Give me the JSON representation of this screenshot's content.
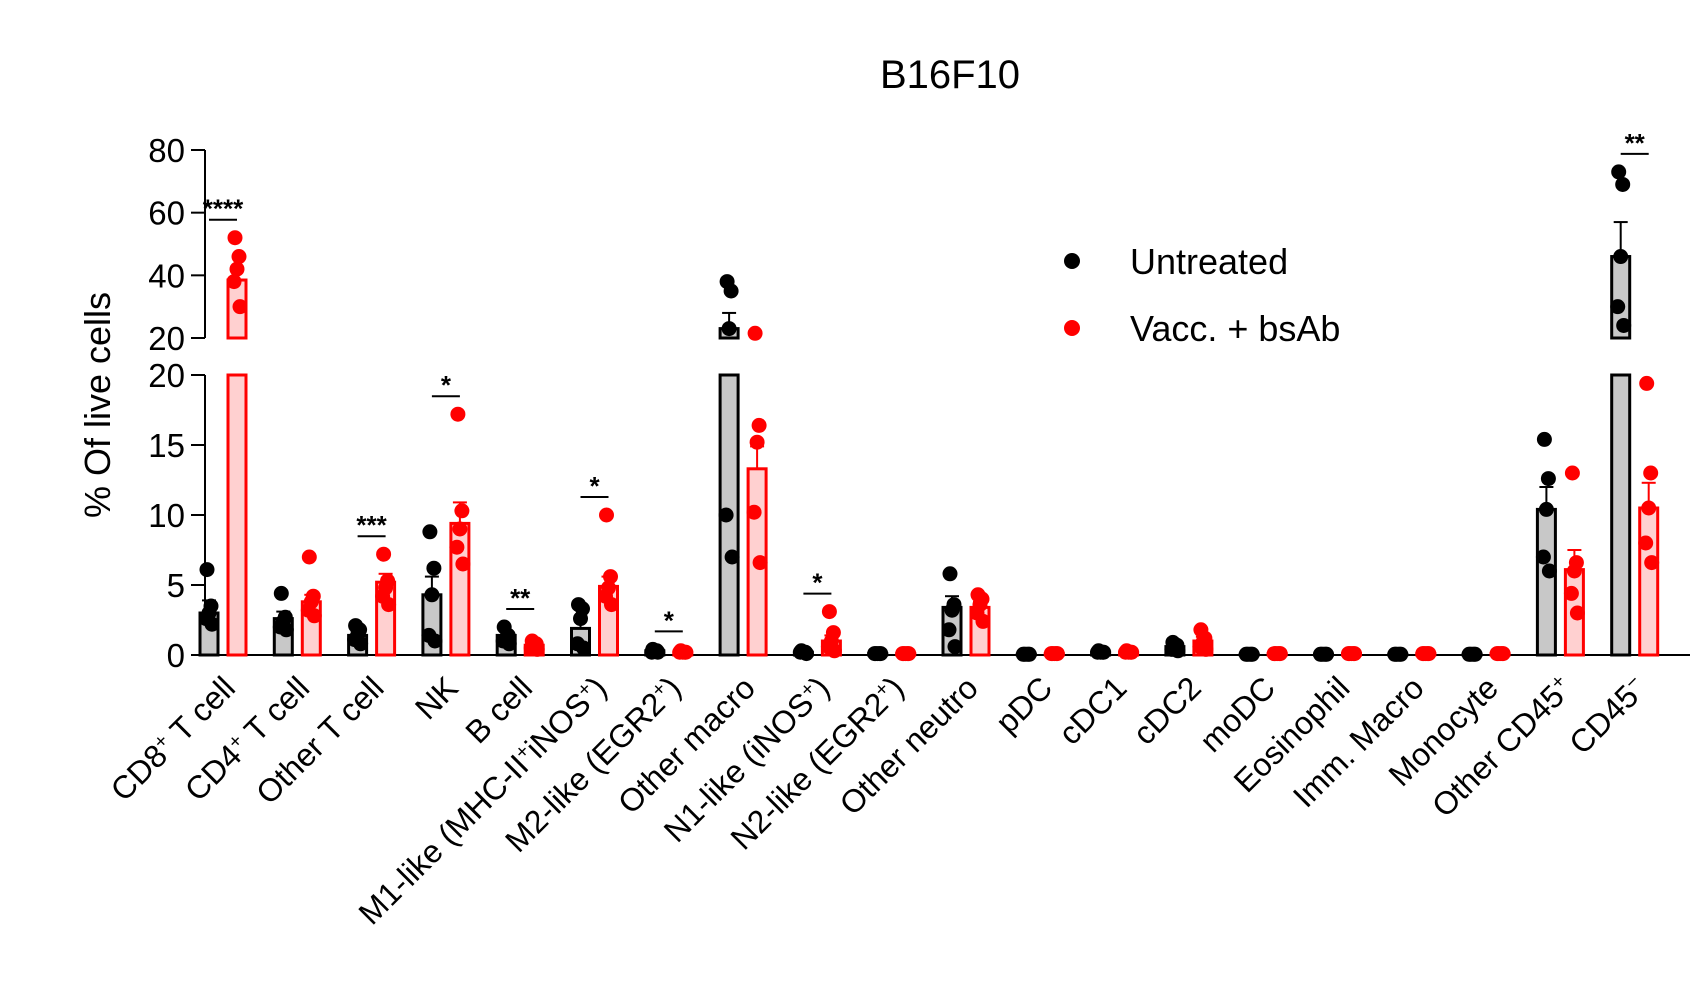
{
  "chart_data": {
    "type": "bar",
    "title": "B16F10",
    "ylabel": "% Of live cells",
    "xlabel": "",
    "y_axis_break": true,
    "ylim_lower": [
      0,
      20
    ],
    "ylim_upper": [
      20,
      80
    ],
    "yticks_lower": [
      "0",
      "5",
      "10",
      "15",
      "20"
    ],
    "yticks_upper": [
      "20",
      "40",
      "60",
      "80"
    ],
    "legend_position": "top-right",
    "categories": [
      {
        "name": "CD8",
        "sup": "+",
        "rest": " T cell"
      },
      {
        "name": "CD4",
        "sup": "+",
        "rest": " T cell"
      },
      {
        "name": "Other T cell",
        "sup": "",
        "rest": ""
      },
      {
        "name": "NK",
        "sup": "",
        "rest": ""
      },
      {
        "name": "B cell",
        "sup": "",
        "rest": ""
      },
      {
        "name": "M1-like (MHC-II",
        "sup": "+",
        "rest": "iNOS",
        "sup2": "+",
        "rest2": ")"
      },
      {
        "name": "M2-like (EGR2",
        "sup": "+",
        "rest": ")"
      },
      {
        "name": "Other macro",
        "sup": "",
        "rest": ""
      },
      {
        "name": "N1-like (iNOS",
        "sup": "+",
        "rest": ")"
      },
      {
        "name": "N2-like (EGR2",
        "sup": "+",
        "rest": ")"
      },
      {
        "name": "Other neutro",
        "sup": "",
        "rest": ""
      },
      {
        "name": "pDC",
        "sup": "",
        "rest": ""
      },
      {
        "name": "cDC1",
        "sup": "",
        "rest": ""
      },
      {
        "name": "cDC2",
        "sup": "",
        "rest": ""
      },
      {
        "name": "moDC",
        "sup": "",
        "rest": ""
      },
      {
        "name": "Eosinophil",
        "sup": "",
        "rest": ""
      },
      {
        "name": "Imm. Macro",
        "sup": "",
        "rest": ""
      },
      {
        "name": "Monocyte",
        "sup": "",
        "rest": ""
      },
      {
        "name": "Other CD45",
        "sup": "+",
        "rest": ""
      },
      {
        "name": "CD45",
        "sup": "−",
        "rest": ""
      }
    ],
    "series": [
      {
        "name": "Untreated",
        "color": "#000000",
        "bar_fill": "#c8c8c8",
        "values": [
          3.0,
          2.6,
          1.4,
          4.3,
          1.4,
          1.9,
          0.3,
          23,
          0.2,
          0.1,
          3.4,
          0.05,
          0.2,
          0.6,
          0.05,
          0.05,
          0.05,
          0.05,
          10.4,
          46
        ],
        "errors": [
          0.9,
          0.5,
          0.3,
          1.3,
          0.3,
          0.6,
          0.1,
          5,
          0.05,
          0.02,
          0.8,
          0.02,
          0.05,
          0.15,
          0.02,
          0.02,
          0.02,
          0.02,
          1.6,
          11
        ],
        "points": [
          [
            6.1,
            3.5,
            3.0,
            2.6,
            2.2
          ],
          [
            4.4,
            2.7,
            2.4,
            2.0,
            1.8
          ],
          [
            2.1,
            1.8,
            1.4,
            1.1,
            0.8
          ],
          [
            8.8,
            6.2,
            4.3,
            1.4,
            1.0
          ],
          [
            2.0,
            1.4,
            1.2,
            1.0,
            0.8
          ],
          [
            3.6,
            3.3,
            2.6,
            0.8,
            0.5
          ],
          [
            0.4,
            0.3,
            0.3,
            0.2,
            0.2
          ],
          [
            38,
            35,
            23,
            10,
            7
          ],
          [
            0.3,
            0.2,
            0.2,
            0.2,
            0.1
          ],
          [
            0.1,
            0.1,
            0.1,
            0.1,
            0.1
          ],
          [
            5.8,
            3.6,
            3.2,
            1.8,
            0.6
          ],
          [
            0.05,
            0.05,
            0.05,
            0.05,
            0.05
          ],
          [
            0.3,
            0.2,
            0.2,
            0.2,
            0.2
          ],
          [
            0.9,
            0.7,
            0.5,
            0.4,
            0.3
          ],
          [
            0.05,
            0.05,
            0.05,
            0.05,
            0.05
          ],
          [
            0.05,
            0.05,
            0.05,
            0.05,
            0.05
          ],
          [
            0.05,
            0.05,
            0.05,
            0.05,
            0.05
          ],
          [
            0.05,
            0.05,
            0.05,
            0.05,
            0.05
          ],
          [
            15.4,
            12.6,
            10.4,
            7.0,
            6.0
          ],
          [
            73,
            69,
            46,
            30,
            24
          ]
        ]
      },
      {
        "name": "Vacc. + bsAb",
        "color": "#ff0000",
        "bar_fill": "#ffd0d0",
        "values": [
          38.5,
          3.8,
          5.2,
          9.4,
          0.7,
          4.9,
          0.2,
          13.3,
          1.0,
          0.1,
          3.4,
          0.1,
          0.2,
          1.0,
          0.1,
          0.1,
          0.1,
          0.1,
          6.1,
          10.5
        ],
        "errors": [
          3.5,
          0.5,
          0.6,
          1.5,
          0.2,
          0.7,
          0.05,
          1.6,
          0.4,
          0.02,
          0.4,
          0.02,
          0.05,
          0.3,
          0.02,
          0.02,
          0.02,
          0.02,
          1.4,
          1.8
        ],
        "points": [
          [
            52,
            46,
            42,
            38,
            30
          ],
          [
            7.0,
            4.2,
            3.8,
            3.2,
            2.8
          ],
          [
            7.2,
            5.3,
            4.8,
            4.2,
            3.6
          ],
          [
            17.2,
            10.3,
            9.0,
            7.7,
            6.5
          ],
          [
            1.0,
            0.8,
            0.7,
            0.5,
            0.4
          ],
          [
            10.0,
            5.6,
            4.8,
            4.2,
            3.6
          ],
          [
            0.3,
            0.2,
            0.2,
            0.2,
            0.2
          ],
          [
            21.5,
            16.4,
            15.2,
            10.2,
            6.6
          ],
          [
            3.1,
            1.6,
            1.0,
            0.6,
            0.3
          ],
          [
            0.1,
            0.1,
            0.1,
            0.1,
            0.1
          ],
          [
            4.3,
            4.0,
            3.6,
            3.0,
            2.4
          ],
          [
            0.1,
            0.1,
            0.1,
            0.1,
            0.1
          ],
          [
            0.3,
            0.2,
            0.2,
            0.2,
            0.2
          ],
          [
            1.8,
            1.2,
            0.9,
            0.6,
            0.4
          ],
          [
            0.1,
            0.1,
            0.1,
            0.1,
            0.1
          ],
          [
            0.1,
            0.1,
            0.1,
            0.1,
            0.1
          ],
          [
            0.1,
            0.1,
            0.1,
            0.1,
            0.1
          ],
          [
            0.1,
            0.1,
            0.1,
            0.1,
            0.1
          ],
          [
            13.0,
            6.6,
            6.0,
            4.4,
            3.0
          ],
          [
            19.4,
            13.0,
            10.5,
            8.0,
            6.6
          ]
        ]
      }
    ],
    "significance": [
      {
        "category_index": 0,
        "label": "****"
      },
      {
        "category_index": 2,
        "label": "***"
      },
      {
        "category_index": 3,
        "label": "*"
      },
      {
        "category_index": 4,
        "label": "**"
      },
      {
        "category_index": 5,
        "label": "*"
      },
      {
        "category_index": 6,
        "label": "*"
      },
      {
        "category_index": 8,
        "label": "*"
      },
      {
        "category_index": 19,
        "label": "**"
      }
    ]
  }
}
